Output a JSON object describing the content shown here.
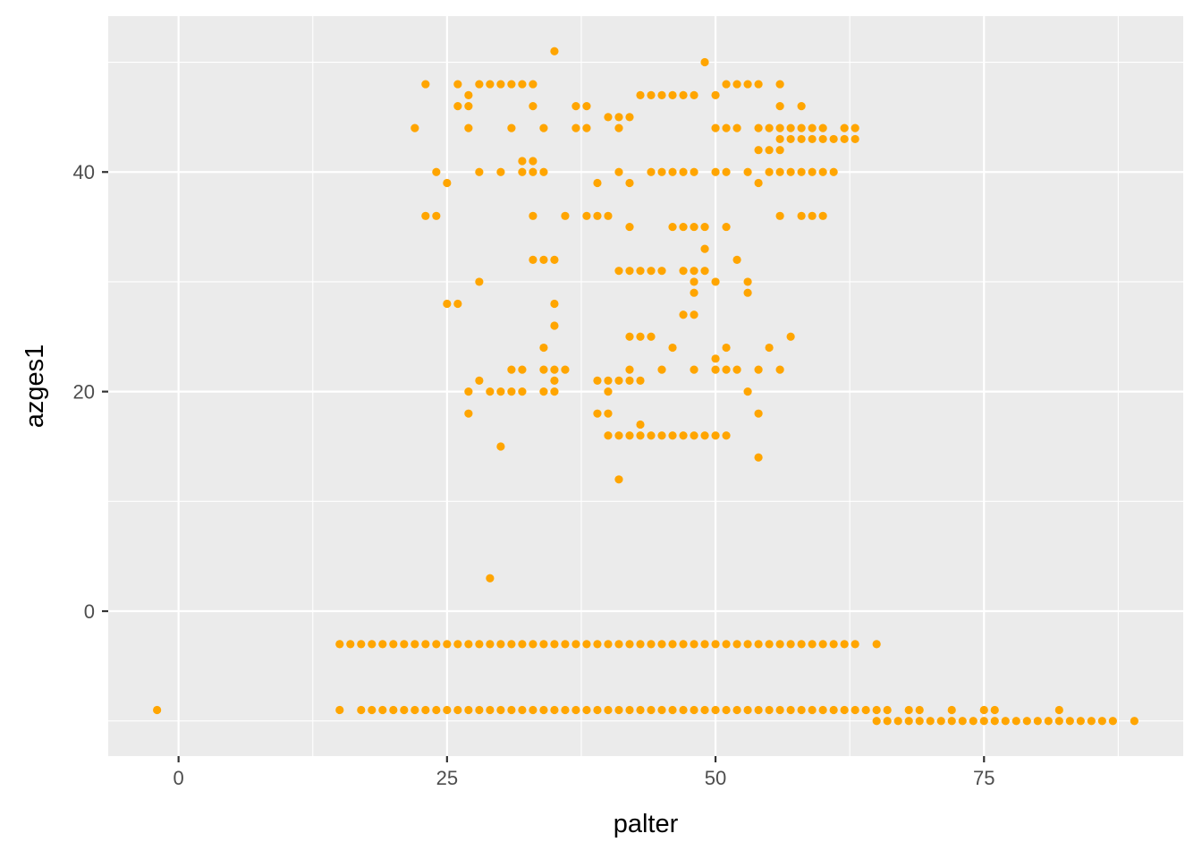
{
  "chart_data": {
    "type": "scatter",
    "xlabel": "palter",
    "ylabel": "azges1",
    "xlim": [
      -6.55,
      93.55
    ],
    "ylim": [
      -13.2,
      54.2
    ],
    "x_ticks": [
      0,
      25,
      50,
      75
    ],
    "x_tick_labels": [
      "0",
      "25",
      "50",
      "75"
    ],
    "y_ticks": [
      0,
      20,
      40
    ],
    "y_tick_labels": [
      "0",
      "20",
      "40"
    ],
    "grid": true,
    "point_color": "#FFA500",
    "panel_color": "#EBEBEB",
    "gridline_color": "#FFFFFF",
    "series": [
      {
        "points": [
          [
            -2,
            -9
          ],
          [
            15,
            -3
          ],
          [
            16,
            -3
          ],
          [
            17,
            -3
          ],
          [
            18,
            -3
          ],
          [
            19,
            -3
          ],
          [
            20,
            -3
          ],
          [
            21,
            -3
          ],
          [
            22,
            -3
          ],
          [
            23,
            -3
          ],
          [
            24,
            -3
          ],
          [
            25,
            -3
          ],
          [
            26,
            -3
          ],
          [
            27,
            -3
          ],
          [
            28,
            -3
          ],
          [
            29,
            -3
          ],
          [
            30,
            -3
          ],
          [
            31,
            -3
          ],
          [
            32,
            -3
          ],
          [
            33,
            -3
          ],
          [
            34,
            -3
          ],
          [
            35,
            -3
          ],
          [
            36,
            -3
          ],
          [
            37,
            -3
          ],
          [
            38,
            -3
          ],
          [
            39,
            -3
          ],
          [
            40,
            -3
          ],
          [
            41,
            -3
          ],
          [
            42,
            -3
          ],
          [
            43,
            -3
          ],
          [
            44,
            -3
          ],
          [
            45,
            -3
          ],
          [
            46,
            -3
          ],
          [
            47,
            -3
          ],
          [
            48,
            -3
          ],
          [
            49,
            -3
          ],
          [
            50,
            -3
          ],
          [
            51,
            -3
          ],
          [
            52,
            -3
          ],
          [
            53,
            -3
          ],
          [
            54,
            -3
          ],
          [
            55,
            -3
          ],
          [
            56,
            -3
          ],
          [
            57,
            -3
          ],
          [
            58,
            -3
          ],
          [
            59,
            -3
          ],
          [
            60,
            -3
          ],
          [
            61,
            -3
          ],
          [
            62,
            -3
          ],
          [
            63,
            -3
          ],
          [
            65,
            -3
          ],
          [
            15,
            -9
          ],
          [
            17,
            -9
          ],
          [
            18,
            -9
          ],
          [
            19,
            -9
          ],
          [
            20,
            -9
          ],
          [
            21,
            -9
          ],
          [
            22,
            -9
          ],
          [
            23,
            -9
          ],
          [
            24,
            -9
          ],
          [
            25,
            -9
          ],
          [
            26,
            -9
          ],
          [
            27,
            -9
          ],
          [
            28,
            -9
          ],
          [
            29,
            -9
          ],
          [
            30,
            -9
          ],
          [
            31,
            -9
          ],
          [
            32,
            -9
          ],
          [
            33,
            -9
          ],
          [
            34,
            -9
          ],
          [
            35,
            -9
          ],
          [
            36,
            -9
          ],
          [
            37,
            -9
          ],
          [
            38,
            -9
          ],
          [
            39,
            -9
          ],
          [
            40,
            -9
          ],
          [
            41,
            -9
          ],
          [
            42,
            -9
          ],
          [
            43,
            -9
          ],
          [
            44,
            -9
          ],
          [
            45,
            -9
          ],
          [
            46,
            -9
          ],
          [
            47,
            -9
          ],
          [
            48,
            -9
          ],
          [
            49,
            -9
          ],
          [
            50,
            -9
          ],
          [
            51,
            -9
          ],
          [
            52,
            -9
          ],
          [
            53,
            -9
          ],
          [
            54,
            -9
          ],
          [
            55,
            -9
          ],
          [
            56,
            -9
          ],
          [
            57,
            -9
          ],
          [
            58,
            -9
          ],
          [
            59,
            -9
          ],
          [
            60,
            -9
          ],
          [
            61,
            -9
          ],
          [
            62,
            -9
          ],
          [
            63,
            -9
          ],
          [
            64,
            -9
          ],
          [
            65,
            -9
          ],
          [
            66,
            -9
          ],
          [
            68,
            -9
          ],
          [
            69,
            -9
          ],
          [
            72,
            -9
          ],
          [
            75,
            -9
          ],
          [
            76,
            -9
          ],
          [
            82,
            -9
          ],
          [
            65,
            -10
          ],
          [
            66,
            -10
          ],
          [
            67,
            -10
          ],
          [
            68,
            -10
          ],
          [
            69,
            -10
          ],
          [
            70,
            -10
          ],
          [
            71,
            -10
          ],
          [
            72,
            -10
          ],
          [
            73,
            -10
          ],
          [
            74,
            -10
          ],
          [
            75,
            -10
          ],
          [
            76,
            -10
          ],
          [
            77,
            -10
          ],
          [
            78,
            -10
          ],
          [
            79,
            -10
          ],
          [
            80,
            -10
          ],
          [
            81,
            -10
          ],
          [
            82,
            -10
          ],
          [
            83,
            -10
          ],
          [
            84,
            -10
          ],
          [
            85,
            -10
          ],
          [
            86,
            -10
          ],
          [
            87,
            -10
          ],
          [
            89,
            -10
          ],
          [
            29,
            3
          ],
          [
            30,
            15
          ],
          [
            41,
            12
          ],
          [
            54,
            14
          ],
          [
            27,
            18
          ],
          [
            39,
            18
          ],
          [
            40,
            18
          ],
          [
            54,
            18
          ],
          [
            40,
            16
          ],
          [
            41,
            16
          ],
          [
            42,
            16
          ],
          [
            43,
            16
          ],
          [
            44,
            16
          ],
          [
            45,
            16
          ],
          [
            46,
            16
          ],
          [
            47,
            16
          ],
          [
            48,
            16
          ],
          [
            49,
            16
          ],
          [
            50,
            16
          ],
          [
            51,
            16
          ],
          [
            43,
            17
          ],
          [
            27,
            20
          ],
          [
            29,
            20
          ],
          [
            30,
            20
          ],
          [
            31,
            20
          ],
          [
            32,
            20
          ],
          [
            34,
            20
          ],
          [
            35,
            20
          ],
          [
            40,
            20
          ],
          [
            53,
            20
          ],
          [
            28,
            21
          ],
          [
            35,
            21
          ],
          [
            39,
            21
          ],
          [
            40,
            21
          ],
          [
            41,
            21
          ],
          [
            42,
            21
          ],
          [
            43,
            21
          ],
          [
            31,
            22
          ],
          [
            32,
            22
          ],
          [
            34,
            22
          ],
          [
            35,
            22
          ],
          [
            36,
            22
          ],
          [
            42,
            22
          ],
          [
            45,
            22
          ],
          [
            48,
            22
          ],
          [
            50,
            22
          ],
          [
            51,
            22
          ],
          [
            52,
            22
          ],
          [
            54,
            22
          ],
          [
            56,
            22
          ],
          [
            50,
            23
          ],
          [
            34,
            24
          ],
          [
            46,
            24
          ],
          [
            51,
            24
          ],
          [
            55,
            24
          ],
          [
            42,
            25
          ],
          [
            43,
            25
          ],
          [
            44,
            25
          ],
          [
            57,
            25
          ],
          [
            35,
            26
          ],
          [
            47,
            27
          ],
          [
            48,
            27
          ],
          [
            25,
            28
          ],
          [
            26,
            28
          ],
          [
            35,
            28
          ],
          [
            48,
            29
          ],
          [
            53,
            29
          ],
          [
            28,
            30
          ],
          [
            48,
            30
          ],
          [
            50,
            30
          ],
          [
            53,
            30
          ],
          [
            41,
            31
          ],
          [
            42,
            31
          ],
          [
            43,
            31
          ],
          [
            44,
            31
          ],
          [
            45,
            31
          ],
          [
            47,
            31
          ],
          [
            48,
            31
          ],
          [
            49,
            31
          ],
          [
            33,
            32
          ],
          [
            34,
            32
          ],
          [
            35,
            32
          ],
          [
            52,
            32
          ],
          [
            49,
            33
          ],
          [
            46,
            35
          ],
          [
            47,
            35
          ],
          [
            48,
            35
          ],
          [
            49,
            35
          ],
          [
            42,
            35
          ],
          [
            51,
            35
          ],
          [
            23,
            36
          ],
          [
            24,
            36
          ],
          [
            33,
            36
          ],
          [
            36,
            36
          ],
          [
            38,
            36
          ],
          [
            39,
            36
          ],
          [
            40,
            36
          ],
          [
            56,
            36
          ],
          [
            58,
            36
          ],
          [
            59,
            36
          ],
          [
            60,
            36
          ],
          [
            25,
            39
          ],
          [
            39,
            39
          ],
          [
            42,
            39
          ],
          [
            54,
            39
          ],
          [
            24,
            40
          ],
          [
            28,
            40
          ],
          [
            30,
            40
          ],
          [
            32,
            40
          ],
          [
            33,
            40
          ],
          [
            34,
            40
          ],
          [
            41,
            40
          ],
          [
            44,
            40
          ],
          [
            45,
            40
          ],
          [
            46,
            40
          ],
          [
            47,
            40
          ],
          [
            48,
            40
          ],
          [
            50,
            40
          ],
          [
            51,
            40
          ],
          [
            53,
            40
          ],
          [
            55,
            40
          ],
          [
            56,
            40
          ],
          [
            57,
            40
          ],
          [
            58,
            40
          ],
          [
            59,
            40
          ],
          [
            60,
            40
          ],
          [
            61,
            40
          ],
          [
            32,
            41
          ],
          [
            33,
            41
          ],
          [
            54,
            42
          ],
          [
            55,
            42
          ],
          [
            56,
            42
          ],
          [
            56,
            43
          ],
          [
            57,
            43
          ],
          [
            58,
            43
          ],
          [
            59,
            43
          ],
          [
            60,
            43
          ],
          [
            61,
            43
          ],
          [
            62,
            43
          ],
          [
            63,
            43
          ],
          [
            22,
            44
          ],
          [
            27,
            44
          ],
          [
            31,
            44
          ],
          [
            34,
            44
          ],
          [
            37,
            44
          ],
          [
            38,
            44
          ],
          [
            41,
            44
          ],
          [
            50,
            44
          ],
          [
            51,
            44
          ],
          [
            52,
            44
          ],
          [
            54,
            44
          ],
          [
            55,
            44
          ],
          [
            56,
            44
          ],
          [
            57,
            44
          ],
          [
            58,
            44
          ],
          [
            59,
            44
          ],
          [
            60,
            44
          ],
          [
            62,
            44
          ],
          [
            63,
            44
          ],
          [
            40,
            45
          ],
          [
            41,
            45
          ],
          [
            42,
            45
          ],
          [
            26,
            46
          ],
          [
            27,
            46
          ],
          [
            33,
            46
          ],
          [
            37,
            46
          ],
          [
            38,
            46
          ],
          [
            56,
            46
          ],
          [
            58,
            46
          ],
          [
            27,
            47
          ],
          [
            43,
            47
          ],
          [
            44,
            47
          ],
          [
            45,
            47
          ],
          [
            46,
            47
          ],
          [
            47,
            47
          ],
          [
            48,
            47
          ],
          [
            50,
            47
          ],
          [
            23,
            48
          ],
          [
            26,
            48
          ],
          [
            28,
            48
          ],
          [
            29,
            48
          ],
          [
            30,
            48
          ],
          [
            31,
            48
          ],
          [
            32,
            48
          ],
          [
            33,
            48
          ],
          [
            51,
            48
          ],
          [
            52,
            48
          ],
          [
            53,
            48
          ],
          [
            54,
            48
          ],
          [
            56,
            48
          ],
          [
            49,
            50
          ],
          [
            35,
            51
          ]
        ]
      }
    ]
  }
}
